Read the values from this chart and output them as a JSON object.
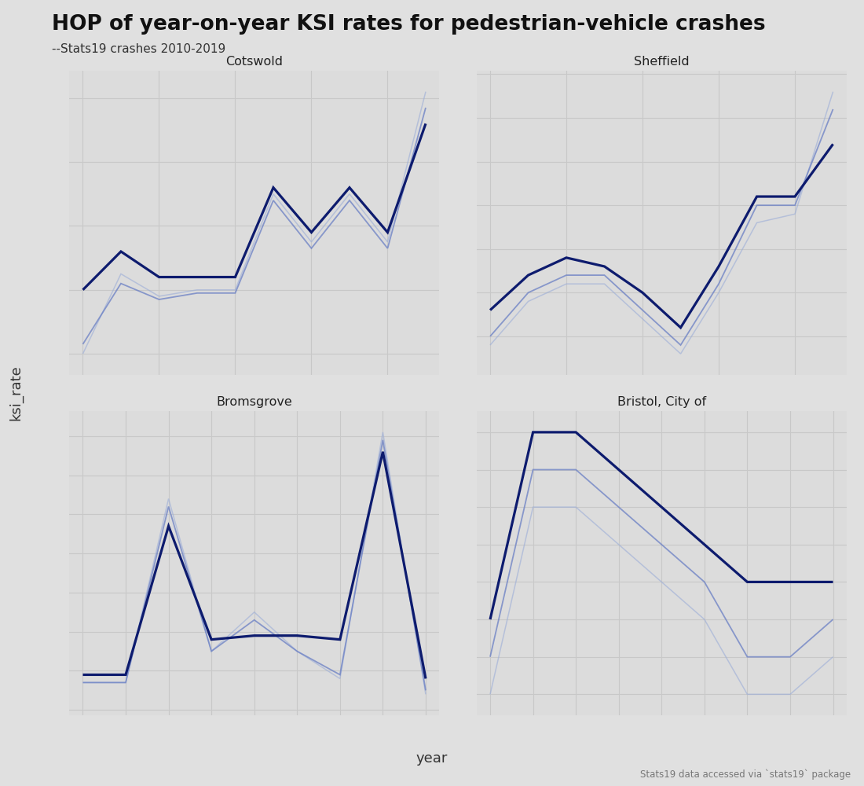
{
  "title": "HOP of year-on-year KSI rates for pedestrian-vehicle crashes",
  "subtitle": "--Stats19 crashes 2010-2019",
  "xlabel": "year",
  "ylabel": "ksi_rate",
  "footnote": "Stats19 data accessed via `stats19` package",
  "background_color": "#e0e0e0",
  "panel_background": "#dcdcdc",
  "grid_color": "#c8c8c8",
  "title_fontsize": 19,
  "subtitle_fontsize": 11,
  "subplots": [
    {
      "title": "Cotswold",
      "series": [
        {
          "values": [
            0.4,
            0.52,
            0.44,
            0.44,
            0.44,
            0.72,
            0.58,
            0.72,
            0.58,
            0.92
          ],
          "color": "#0d1b6e",
          "lw": 2.3,
          "alpha": 1.0,
          "zorder": 3
        },
        {
          "values": [
            0.23,
            0.42,
            0.37,
            0.39,
            0.39,
            0.68,
            0.53,
            0.68,
            0.53,
            0.97
          ],
          "color": "#6a7fc4",
          "lw": 1.3,
          "alpha": 0.75,
          "zorder": 2
        },
        {
          "values": [
            0.2,
            0.45,
            0.38,
            0.4,
            0.4,
            0.7,
            0.55,
            0.7,
            0.55,
            1.02
          ],
          "color": "#9badd8",
          "lw": 1.1,
          "alpha": 0.6,
          "zorder": 1
        }
      ]
    },
    {
      "title": "Sheffield",
      "series": [
        {
          "values": [
            0.38,
            0.42,
            0.44,
            0.43,
            0.4,
            0.36,
            0.43,
            0.51,
            0.51,
            0.57
          ],
          "color": "#0d1b6e",
          "lw": 2.3,
          "alpha": 1.0,
          "zorder": 3
        },
        {
          "values": [
            0.35,
            0.4,
            0.42,
            0.42,
            0.38,
            0.34,
            0.41,
            0.5,
            0.5,
            0.61
          ],
          "color": "#6a7fc4",
          "lw": 1.3,
          "alpha": 0.75,
          "zorder": 2
        },
        {
          "values": [
            0.34,
            0.39,
            0.41,
            0.41,
            0.37,
            0.33,
            0.4,
            0.48,
            0.49,
            0.63
          ],
          "color": "#9badd8",
          "lw": 1.1,
          "alpha": 0.6,
          "zorder": 1
        }
      ]
    },
    {
      "title": "Bromsgrove",
      "series": [
        {
          "values": [
            0.19,
            0.19,
            0.57,
            0.28,
            0.29,
            0.29,
            0.28,
            0.76,
            0.18
          ],
          "color": "#0d1b6e",
          "lw": 2.3,
          "alpha": 1.0,
          "zorder": 3
        },
        {
          "values": [
            0.17,
            0.17,
            0.62,
            0.25,
            0.33,
            0.25,
            0.19,
            0.79,
            0.15
          ],
          "color": "#6a7fc4",
          "lw": 1.3,
          "alpha": 0.75,
          "zorder": 2
        },
        {
          "values": [
            0.17,
            0.17,
            0.64,
            0.25,
            0.35,
            0.25,
            0.18,
            0.81,
            0.14
          ],
          "color": "#9badd8",
          "lw": 1.1,
          "alpha": 0.6,
          "zorder": 1
        }
      ]
    },
    {
      "title": "Bristol, City of",
      "series": [
        {
          "values": [
            0.28,
            0.33,
            0.33,
            0.32,
            0.31,
            0.3,
            0.29,
            0.29,
            0.29
          ],
          "color": "#0d1b6e",
          "lw": 2.3,
          "alpha": 1.0,
          "zorder": 3
        },
        {
          "values": [
            0.27,
            0.32,
            0.32,
            0.31,
            0.3,
            0.29,
            0.27,
            0.27,
            0.28
          ],
          "color": "#6a7fc4",
          "lw": 1.3,
          "alpha": 0.75,
          "zorder": 2
        },
        {
          "values": [
            0.26,
            0.31,
            0.31,
            0.3,
            0.29,
            0.28,
            0.26,
            0.26,
            0.27
          ],
          "color": "#9badd8",
          "lw": 1.1,
          "alpha": 0.6,
          "zorder": 1
        }
      ]
    }
  ]
}
